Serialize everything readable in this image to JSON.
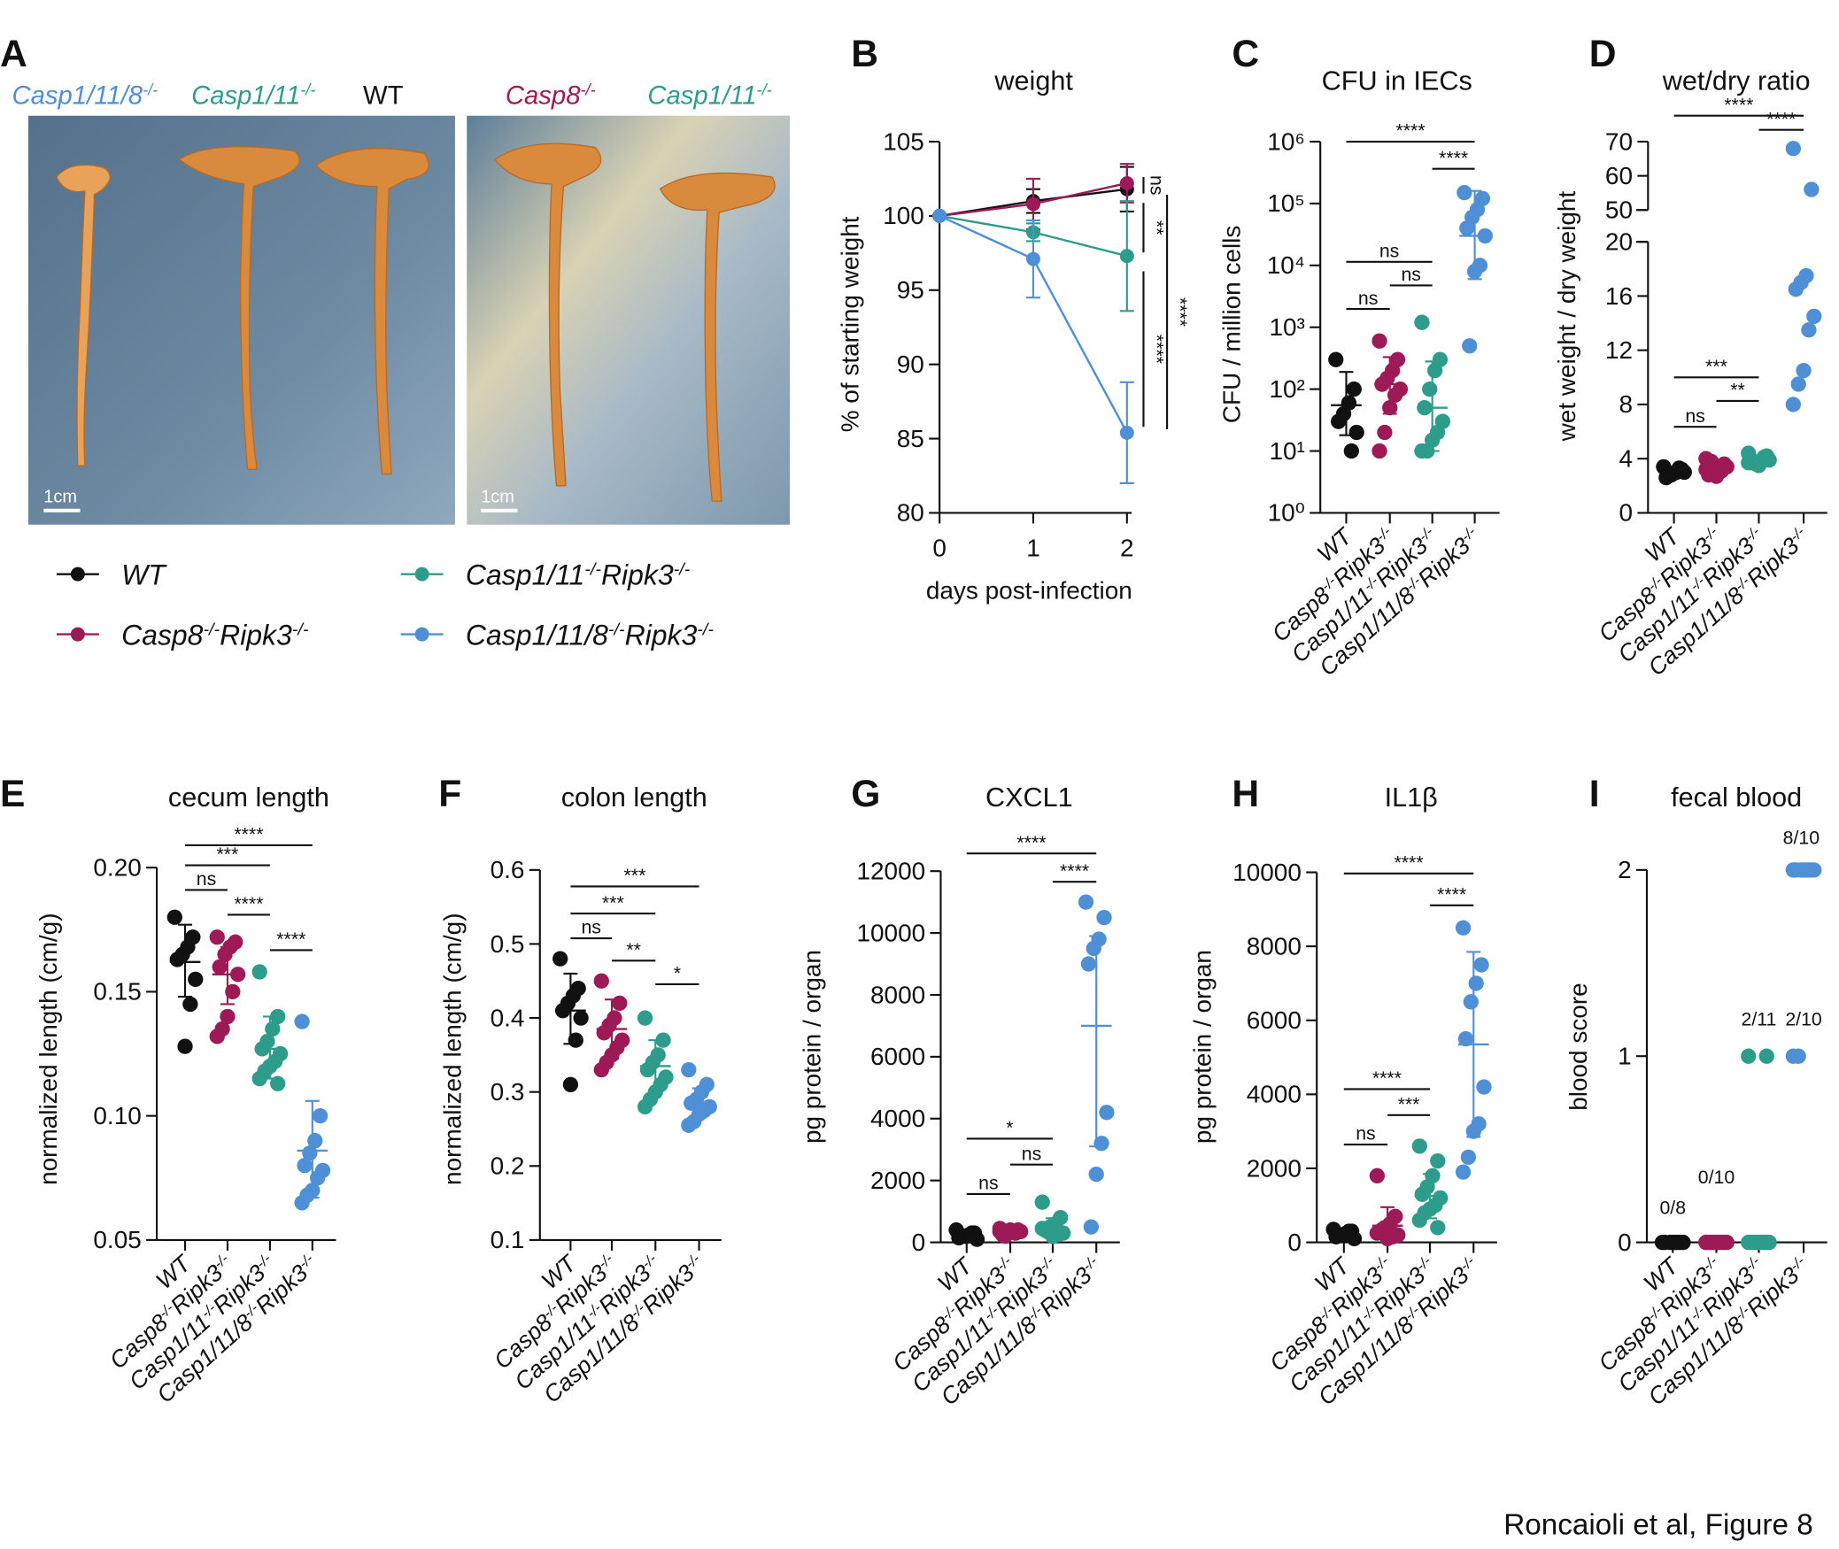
{
  "panel_a": {
    "panel": "A",
    "labels": [
      "Casp1/11/8-/-",
      "Casp1/11-/-",
      "WT",
      "Casp8-/-",
      "Casp1/11-/-"
    ],
    "scale_bars": [
      "1cm",
      "1cm"
    ]
  },
  "caption": "Roncaioli et al, Figure 8",
  "chart_data": [
    {
      "type": "line",
      "panel": "B",
      "title": "weight",
      "xlabel": "days post-infection",
      "ylabel": "% of starting weight",
      "x": [
        0,
        1,
        2
      ],
      "xlim": [
        0,
        2
      ],
      "xticks": [
        0,
        1,
        2
      ],
      "ylim": [
        80,
        105
      ],
      "yticks": [
        80,
        85,
        90,
        95,
        100,
        105
      ],
      "series": [
        {
          "name": "WT",
          "color": "#111111",
          "values": [
            100,
            101,
            101.8
          ],
          "errors": [
            0,
            0.8,
            1.5
          ]
        },
        {
          "name": "Casp8-/-Ripk3-/-",
          "color": "#9e1a56",
          "values": [
            100,
            100.8,
            102.2
          ],
          "errors": [
            0,
            1.7,
            1.3
          ]
        },
        {
          "name": "Casp1/11-/-Ripk3-/-",
          "color": "#2e9c8a",
          "values": [
            100,
            98.9,
            97.3
          ],
          "errors": [
            0,
            0.6,
            3.7
          ]
        },
        {
          "name": "Casp1/11/8-/-Ripk3-/-",
          "color": "#4f8fd6",
          "values": [
            100,
            97.1,
            85.4
          ],
          "errors": [
            0,
            2.6,
            3.4
          ]
        }
      ],
      "significance": [
        "ns",
        "**",
        "****",
        "****"
      ]
    },
    {
      "type": "strip",
      "panel": "C",
      "title": "CFU in IECs",
      "ylabel": "CFU / million cells",
      "log": true,
      "ylim": [
        1,
        1000000
      ],
      "yticks": [
        {
          "value": 1,
          "label": "10⁰"
        },
        {
          "value": 10,
          "label": "10¹"
        },
        {
          "value": 100,
          "label": "10²"
        },
        {
          "value": 1000,
          "label": "10³"
        },
        {
          "value": 10000,
          "label": "10⁴"
        },
        {
          "value": 100000,
          "label": "10⁵"
        },
        {
          "value": 1000000,
          "label": "10⁶"
        }
      ],
      "categories": [
        "WT",
        "Casp8-/-Ripk3-/-",
        "Casp1/11-/-Ripk3-/-",
        "Casp1/11/8-/-Ripk3-/-"
      ],
      "colors": [
        "#111111",
        "#9e1a56",
        "#2e9c8a",
        "#4f8fd6"
      ],
      "points": [
        [
          300,
          100,
          60,
          40,
          30,
          20,
          10
        ],
        [
          600,
          300,
          200,
          150,
          120,
          100,
          80,
          50,
          20,
          10
        ],
        [
          1200,
          300,
          200,
          100,
          50,
          30,
          20,
          15,
          10,
          10
        ],
        [
          150000,
          120000,
          80000,
          60000,
          40000,
          30000,
          10000,
          8000,
          500
        ]
      ],
      "means": [
        55,
        120,
        50,
        30000
      ],
      "sd_ranges": [
        [
          18,
          190
        ],
        [
          40,
          330
        ],
        [
          10,
          280
        ],
        [
          6000,
          160000
        ]
      ],
      "significance": [
        "****",
        "****",
        "ns",
        "ns",
        "ns"
      ]
    },
    {
      "type": "strip",
      "panel": "D",
      "title": "wet/dry ratio",
      "ylabel": "wet weight / dry weight",
      "ylim": [
        0,
        20
      ],
      "yticks": [
        0,
        4,
        8,
        12,
        16,
        20
      ],
      "ylim_upper": [
        50,
        70
      ],
      "yticks_upper": [
        50,
        60,
        70
      ],
      "categories": [
        "WT",
        "Casp8-/-Ripk3-/-",
        "Casp1/11-/-Ripk3-/-",
        "Casp1/11/8-/-Ripk3-/-"
      ],
      "colors": [
        "#111111",
        "#9e1a56",
        "#2e9c8a",
        "#4f8fd6"
      ],
      "points": [
        [
          3.4,
          3.2,
          3.0,
          2.8,
          2.6,
          3.0,
          3.3
        ],
        [
          4.0,
          3.6,
          3.3,
          3.0,
          2.8,
          3.4,
          3.1,
          2.7,
          3.8,
          3.2
        ],
        [
          4.4,
          4.0,
          3.8,
          3.6,
          3.7,
          3.9,
          4.1,
          3.5,
          3.8,
          3.7,
          4.2
        ],
        [
          68,
          56,
          17.5,
          17,
          16.5,
          14.5,
          13.5,
          10.5,
          9.5,
          8
        ]
      ],
      "means": [
        3.0,
        3.2,
        3.8,
        null
      ],
      "sd_ranges": [
        [
          2.6,
          3.4
        ],
        [
          2.7,
          3.7
        ],
        [
          3.5,
          4.2
        ],
        null
      ],
      "significance": [
        "****",
        "****",
        "***",
        "**",
        "ns"
      ]
    },
    {
      "type": "strip",
      "panel": "E",
      "title": "cecum length",
      "ylabel": "normalized length (cm/g)",
      "ylim": [
        0.05,
        0.2
      ],
      "yticks": [
        0.05,
        {
          "value": 0.1,
          "label": "0.10"
        },
        0.15,
        {
          "value": 0.2,
          "label": "0.20"
        }
      ],
      "categories": [
        "WT",
        "Casp8-/-Ripk3-/-",
        "Casp1/11-/-Ripk3-/-",
        "Casp1/11/8-/-Ripk3-/-"
      ],
      "colors": [
        "#111111",
        "#9e1a56",
        "#2e9c8a",
        "#4f8fd6"
      ],
      "points": [
        [
          0.18,
          0.172,
          0.168,
          0.165,
          0.163,
          0.155,
          0.145,
          0.128
        ],
        [
          0.172,
          0.17,
          0.168,
          0.165,
          0.16,
          0.157,
          0.15,
          0.14,
          0.135,
          0.132
        ],
        [
          0.158,
          0.14,
          0.135,
          0.13,
          0.127,
          0.125,
          0.122,
          0.12,
          0.118,
          0.115,
          0.113
        ],
        [
          0.138,
          0.1,
          0.09,
          0.085,
          0.08,
          0.078,
          0.075,
          0.07,
          0.068,
          0.065
        ]
      ],
      "means": [
        0.162,
        0.157,
        0.127,
        0.086
      ],
      "sd_ranges": [
        [
          0.148,
          0.177
        ],
        [
          0.145,
          0.168
        ],
        [
          0.115,
          0.14
        ],
        [
          0.067,
          0.106
        ]
      ],
      "significance": [
        "****",
        "***",
        "ns",
        "****",
        "****"
      ]
    },
    {
      "type": "strip",
      "panel": "F",
      "title": "colon length",
      "ylabel": "normalized length (cm/g)",
      "ylim": [
        0.1,
        0.6
      ],
      "yticks": [
        0.1,
        0.2,
        0.3,
        0.4,
        0.5,
        0.6
      ],
      "categories": [
        "WT",
        "Casp8-/-Ripk3-/-",
        "Casp1/11-/-Ripk3-/-",
        "Casp1/11/8-/-Ripk3-/-"
      ],
      "colors": [
        "#111111",
        "#9e1a56",
        "#2e9c8a",
        "#4f8fd6"
      ],
      "points": [
        [
          0.48,
          0.44,
          0.43,
          0.42,
          0.41,
          0.4,
          0.37,
          0.31
        ],
        [
          0.45,
          0.42,
          0.4,
          0.39,
          0.38,
          0.37,
          0.36,
          0.35,
          0.34,
          0.33
        ],
        [
          0.4,
          0.37,
          0.35,
          0.34,
          0.33,
          0.32,
          0.31,
          0.3,
          0.29,
          0.28
        ],
        [
          0.33,
          0.31,
          0.3,
          0.29,
          0.285,
          0.28,
          0.275,
          0.27,
          0.26,
          0.255
        ]
      ],
      "means": [
        0.41,
        0.385,
        0.335,
        0.285
      ],
      "sd_ranges": [
        [
          0.365,
          0.46
        ],
        [
          0.345,
          0.425
        ],
        [
          0.3,
          0.37
        ],
        [
          0.265,
          0.305
        ]
      ],
      "significance": [
        "***",
        "***",
        "ns",
        "**",
        "*"
      ]
    },
    {
      "type": "strip",
      "panel": "G",
      "title": "CXCL1",
      "ylabel": "pg protein / organ",
      "ylim": [
        0,
        12000
      ],
      "yticks": [
        0,
        2000,
        4000,
        6000,
        8000,
        10000,
        12000
      ],
      "categories": [
        "WT",
        "Casp8-/-Ripk3-/-",
        "Casp1/11-/-Ripk3-/-",
        "Casp1/11/8-/-Ripk3-/-"
      ],
      "colors": [
        "#111111",
        "#9e1a56",
        "#2e9c8a",
        "#4f8fd6"
      ],
      "points": [
        [
          400,
          300,
          250,
          200,
          150,
          100,
          300,
          200
        ],
        [
          450,
          400,
          350,
          300,
          250,
          350,
          300,
          400,
          200,
          350
        ],
        [
          1300,
          800,
          600,
          500,
          400,
          300,
          250,
          200,
          350,
          450
        ],
        [
          11000,
          10500,
          9800,
          9500,
          9000,
          4200,
          3200,
          2200,
          500
        ]
      ],
      "means": [
        250,
        330,
        480,
        7000
      ],
      "sd_ranges": [
        [
          150,
          350
        ],
        [
          250,
          420
        ],
        [
          200,
          780
        ],
        [
          3100,
          9900
        ]
      ],
      "significance": [
        "****",
        "****",
        "*",
        "ns",
        "ns"
      ]
    },
    {
      "type": "strip",
      "panel": "H",
      "title": "IL1β",
      "ylabel": "pg protein / organ",
      "ylim": [
        0,
        10000
      ],
      "yticks": [
        0,
        2000,
        4000,
        6000,
        8000,
        10000
      ],
      "categories": [
        "WT",
        "Casp8-/-Ripk3-/-",
        "Casp1/11-/-Ripk3-/-",
        "Casp1/11/8-/-Ripk3-/-"
      ],
      "colors": [
        "#111111",
        "#9e1a56",
        "#2e9c8a",
        "#4f8fd6"
      ],
      "points": [
        [
          350,
          300,
          250,
          200,
          150,
          100,
          300,
          200
        ],
        [
          1800,
          700,
          500,
          400,
          300,
          200,
          150,
          100,
          350,
          250
        ],
        [
          2600,
          2200,
          1800,
          1500,
          1300,
          1200,
          1000,
          900,
          800,
          600,
          400
        ],
        [
          8500,
          7500,
          7000,
          6500,
          5500,
          4200,
          3200,
          3000,
          2300,
          1900
        ]
      ],
      "means": [
        230,
        450,
        1250,
        5350
      ],
      "sd_ranges": [
        [
          150,
          300
        ],
        [
          100,
          950
        ],
        [
          650,
          1850
        ],
        [
          2850,
          7850
        ]
      ],
      "significance": [
        "****",
        "****",
        "****",
        "***",
        "ns"
      ]
    },
    {
      "type": "strip",
      "panel": "I",
      "title": "fecal blood",
      "ylabel": "blood score",
      "ylim": [
        0,
        2
      ],
      "yticks": [
        0,
        1,
        2
      ],
      "categories": [
        "WT",
        "Casp8-/-Ripk3-/-",
        "Casp1/11-/-Ripk3-/-",
        "Casp1/11/8-/-Ripk3-/-"
      ],
      "colors": [
        "#111111",
        "#9e1a56",
        "#2e9c8a",
        "#4f8fd6"
      ],
      "points": [
        [
          0,
          0,
          0,
          0,
          0,
          0,
          0,
          0
        ],
        [
          0,
          0,
          0,
          0,
          0,
          0,
          0,
          0,
          0,
          0
        ],
        [
          1,
          1,
          0,
          0,
          0,
          0,
          0,
          0,
          0,
          0,
          0
        ],
        [
          2,
          2,
          2,
          2,
          2,
          2,
          2,
          2,
          1,
          1
        ]
      ],
      "fractions": [
        "0/8",
        "0/10",
        "2/11",
        "2/10",
        "8/10"
      ]
    }
  ]
}
